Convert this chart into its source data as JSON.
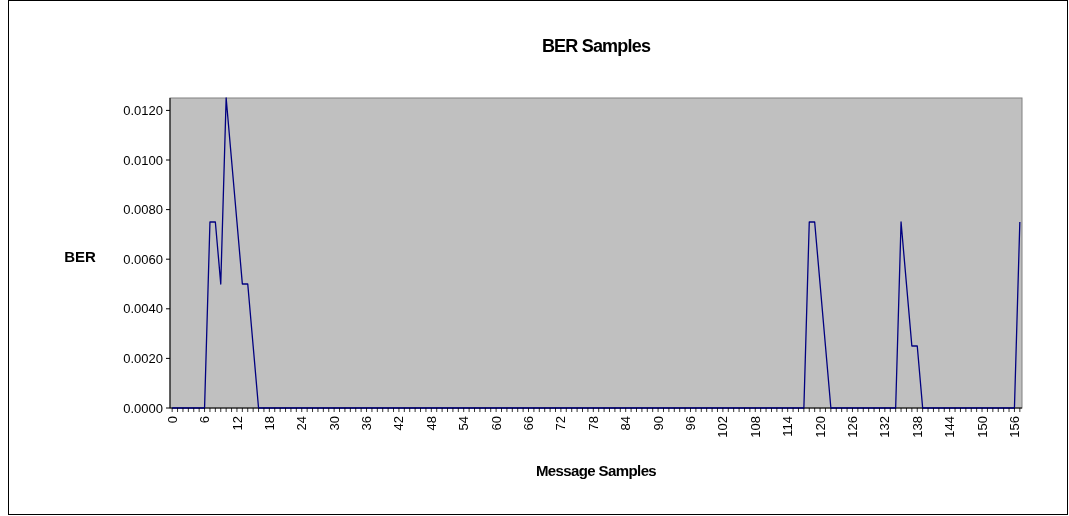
{
  "chart_data": {
    "type": "line",
    "title": "BER Samples",
    "xlabel": "Message Samples",
    "ylabel": "BER",
    "categories": [
      "0",
      null,
      null,
      null,
      null,
      null,
      "6",
      null,
      null,
      null,
      null,
      null,
      "12",
      null,
      null,
      null,
      null,
      null,
      "18",
      null,
      null,
      null,
      null,
      null,
      "24",
      null,
      null,
      null,
      null,
      null,
      "30",
      null,
      null,
      null,
      null,
      null,
      "36",
      null,
      null,
      null,
      null,
      null,
      "42",
      null,
      null,
      null,
      null,
      null,
      "48",
      null,
      null,
      null,
      null,
      null,
      "54",
      null,
      null,
      null,
      null,
      null,
      "60",
      null,
      null,
      null,
      null,
      null,
      "66",
      null,
      null,
      null,
      null,
      null,
      "72",
      null,
      null,
      null,
      null,
      null,
      "78",
      null,
      null,
      null,
      null,
      null,
      "84",
      null,
      null,
      null,
      null,
      null,
      "90",
      null,
      null,
      null,
      null,
      null,
      "96",
      null,
      null,
      null,
      null,
      null,
      "102",
      null,
      null,
      null,
      null,
      null,
      "108",
      null,
      null,
      null,
      null,
      null,
      "114",
      null,
      null,
      null,
      null,
      null,
      "120",
      null,
      null,
      null,
      null,
      null,
      "126",
      null,
      null,
      null,
      null,
      null,
      "132",
      null,
      null,
      null,
      null,
      null,
      "138",
      null,
      null,
      null,
      null,
      null,
      "144",
      null,
      null,
      null,
      null,
      null,
      "150",
      null,
      null,
      null,
      null,
      null,
      "156",
      null
    ],
    "series": [
      {
        "color": "#000080",
        "values": [
          0,
          0,
          0,
          0,
          0,
          0,
          0,
          0.0075,
          0.0075,
          0.005,
          0.0125,
          0.01,
          0.0075,
          0.005,
          0.005,
          0.0025,
          0,
          0,
          0,
          0,
          0,
          0,
          0,
          0,
          0,
          0,
          0,
          0,
          0,
          0,
          0,
          0,
          0,
          0,
          0,
          0,
          0,
          0,
          0,
          0,
          0,
          0,
          0,
          0,
          0,
          0,
          0,
          0,
          0,
          0,
          0,
          0,
          0,
          0,
          0,
          0,
          0,
          0,
          0,
          0,
          0,
          0,
          0,
          0,
          0,
          0,
          0,
          0,
          0,
          0,
          0,
          0,
          0,
          0,
          0,
          0,
          0,
          0,
          0,
          0,
          0,
          0,
          0,
          0,
          0,
          0,
          0,
          0,
          0,
          0,
          0,
          0,
          0,
          0,
          0,
          0,
          0,
          0,
          0,
          0,
          0,
          0,
          0,
          0,
          0,
          0,
          0,
          0,
          0,
          0,
          0,
          0,
          0,
          0,
          0,
          0,
          0,
          0,
          0.0075,
          0.0075,
          0.005,
          0.0025,
          0,
          0,
          0,
          0,
          0,
          0,
          0,
          0,
          0,
          0,
          0,
          0,
          0,
          0.0075,
          0.005,
          0.0025,
          0.0025,
          0,
          0,
          0,
          0,
          0,
          0,
          0,
          0,
          0,
          0,
          0,
          0,
          0,
          0,
          0,
          0,
          0,
          0,
          0.0075
        ]
      }
    ],
    "ylim": [
      0,
      0.0125
    ],
    "yticks": [
      {
        "value": 0,
        "label": "0.0000"
      },
      {
        "value": 0.002,
        "label": "0.0020"
      },
      {
        "value": 0.004,
        "label": "0.0040"
      },
      {
        "value": 0.006,
        "label": "0.0060"
      },
      {
        "value": 0.008,
        "label": "0.0080"
      },
      {
        "value": 0.01,
        "label": "0.0100"
      },
      {
        "value": 0.012,
        "label": "0.0120"
      }
    ],
    "grid": false,
    "marker": "none",
    "line_style": "solid"
  }
}
